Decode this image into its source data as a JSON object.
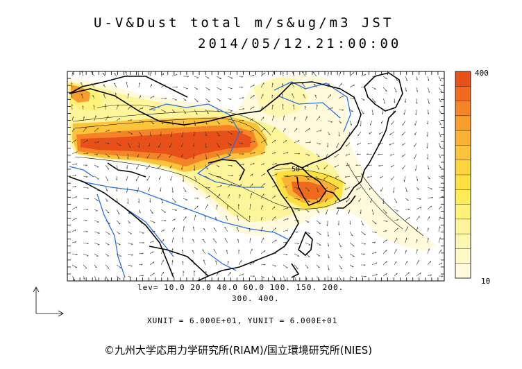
{
  "title": {
    "line1": "U-V&Dust total m/s&ug/m3 JST",
    "line2": "2014/05/12.21:00:00"
  },
  "colorbar": {
    "max_label": "400",
    "min_label": "10",
    "colors": [
      "#e8501a",
      "#f06a1e",
      "#f58426",
      "#f79d2c",
      "#f9b233",
      "#fbc43a",
      "#fcd43e",
      "#fde143",
      "#feec57",
      "#fef27a",
      "#fef59a",
      "#fef7b2",
      "#fff9c8",
      "#fffadb"
    ]
  },
  "map": {
    "coastline_color": "#000000",
    "river_color": "#2a6fe8",
    "max_contour_label": "50"
  },
  "legend": {
    "levels_line1": "lev= 10.0 20.0 40.0 60.0 100. 150. 200.",
    "levels_line2": "300. 400.",
    "units": "XUNIT = 6.000E+01, YUNIT = 6.000E+01"
  },
  "credit": "©九州大学応用力学研究所(RIAM)/国立環境研究所(NIES)"
}
